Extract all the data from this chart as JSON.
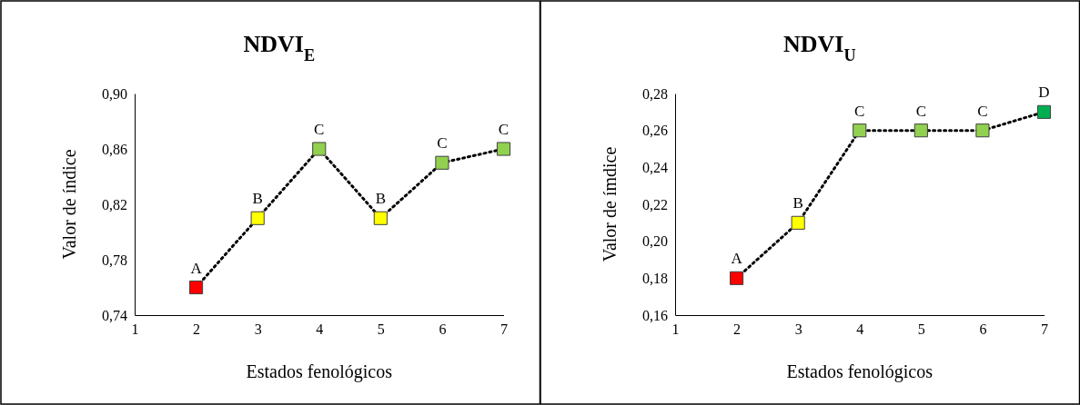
{
  "chart_data": [
    {
      "type": "line",
      "title": "NDVI$_{E}$",
      "xlabel": "Estados fenológicos",
      "ylabel": "Valor de índice",
      "x": [
        2,
        3,
        4,
        5,
        6,
        7
      ],
      "xlim": [
        1,
        7
      ],
      "xticks": [
        1,
        2,
        3,
        4,
        5,
        6,
        7
      ],
      "ylim": [
        0.74,
        0.9
      ],
      "yticks": [
        {
          "value": 0.74,
          "label": "0,74"
        },
        {
          "value": 0.78,
          "label": "0,78"
        },
        {
          "value": 0.82,
          "label": "0,82"
        },
        {
          "value": 0.86,
          "label": "0,86"
        },
        {
          "value": 0.9,
          "label": "0,90"
        }
      ],
      "grid": false,
      "marker": "square",
      "line_style": "dotted",
      "series": [
        {
          "color": "#000000",
          "colors": [
            "#ff0000",
            "#ffff00",
            "#92d050",
            "#ffff00",
            "#92d050",
            "#92d050"
          ],
          "values": [
            0.76,
            0.81,
            0.86,
            0.81,
            0.85,
            0.86
          ]
        }
      ],
      "annotations": [
        {
          "text": "A",
          "x": 2,
          "y": 0.76
        },
        {
          "text": "B",
          "x": 3,
          "y": 0.81
        },
        {
          "text": "C",
          "x": 4,
          "y": 0.86
        },
        {
          "text": "B",
          "x": 5,
          "y": 0.81
        },
        {
          "text": "C",
          "x": 6,
          "y": 0.85
        },
        {
          "text": "C",
          "x": 7,
          "y": 0.86
        }
      ]
    },
    {
      "type": "line",
      "title": "NDVI$_{U}$",
      "xlabel": "Estados fenológicos",
      "ylabel": "Valor de ímdice",
      "x": [
        2,
        3,
        4,
        5,
        6,
        7
      ],
      "xlim": [
        1,
        7
      ],
      "xticks": [
        1,
        2,
        3,
        4,
        5,
        6,
        7
      ],
      "ylim": [
        0.16,
        0.28
      ],
      "yticks": [
        {
          "value": 0.16,
          "label": "0,16"
        },
        {
          "value": 0.18,
          "label": "0,18"
        },
        {
          "value": 0.2,
          "label": "0,20"
        },
        {
          "value": 0.22,
          "label": "0,22"
        },
        {
          "value": 0.24,
          "label": "0,24"
        },
        {
          "value": 0.26,
          "label": "0,26"
        },
        {
          "value": 0.28,
          "label": "0,28"
        }
      ],
      "grid": false,
      "marker": "square",
      "line_style": "dotted",
      "series": [
        {
          "color": "#000000",
          "colors": [
            "#ff0000",
            "#ffff00",
            "#92d050",
            "#92d050",
            "#92d050",
            "#00b050"
          ],
          "values": [
            0.18,
            0.21,
            0.26,
            0.26,
            0.26,
            0.27
          ]
        }
      ],
      "annotations": [
        {
          "text": "A",
          "x": 2,
          "y": 0.18
        },
        {
          "text": "B",
          "x": 3,
          "y": 0.21
        },
        {
          "text": "C",
          "x": 4,
          "y": 0.26
        },
        {
          "text": "C",
          "x": 5,
          "y": 0.26
        },
        {
          "text": "C",
          "x": 6,
          "y": 0.26
        },
        {
          "text": "D",
          "x": 7,
          "y": 0.27
        }
      ]
    }
  ]
}
